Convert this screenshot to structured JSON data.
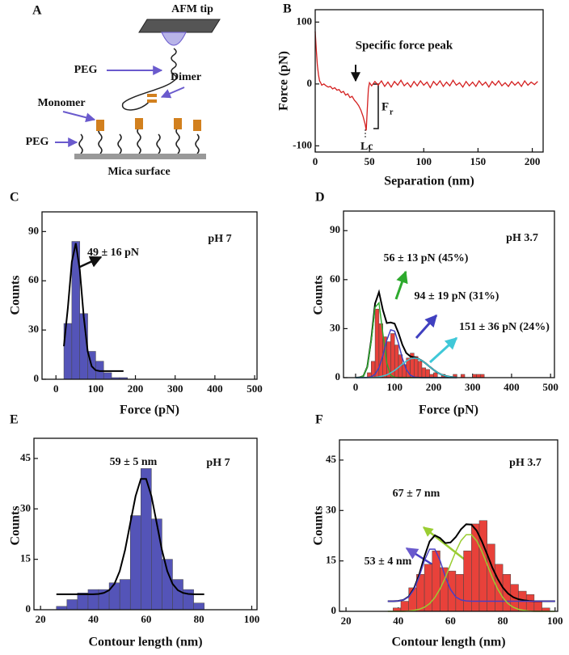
{
  "diagram": {
    "label": "A",
    "tip": "AFM tip",
    "peg_top": "PEG",
    "dimer": "Dimer",
    "monomer": "Monomer",
    "peg_bottom": "PEG",
    "surface": "Mica surface"
  },
  "chart_data": [
    {
      "type": "line",
      "label": "B",
      "xlabel": "Separation (nm)",
      "ylabel": "Force (pN)",
      "color": "#d42020",
      "x": [
        0,
        1,
        2,
        3,
        4,
        5,
        6,
        8,
        10,
        12,
        14,
        16,
        18,
        20,
        22,
        24,
        26,
        28,
        30,
        32,
        34,
        36,
        38,
        40,
        42,
        44,
        46,
        47,
        48,
        49,
        50,
        52,
        55,
        58,
        61,
        64,
        67,
        70,
        73,
        76,
        79,
        82,
        85,
        88,
        91,
        94,
        97,
        100,
        103,
        106,
        109,
        112,
        115,
        118,
        121,
        124,
        127,
        130,
        133,
        136,
        139,
        142,
        145,
        148,
        151,
        154,
        157,
        160,
        163,
        166,
        169,
        172,
        175,
        178,
        181,
        184,
        187,
        190,
        193,
        196,
        199,
        202,
        205
      ],
      "values": [
        85,
        55,
        30,
        15,
        5,
        2,
        -2,
        0,
        -3,
        -5,
        -4,
        -8,
        -6,
        -10,
        -9,
        -14,
        -12,
        -18,
        -16,
        -22,
        -20,
        -26,
        -30,
        -35,
        -42,
        -52,
        -65,
        -75,
        -40,
        -8,
        2,
        -3,
        4,
        -2,
        5,
        -4,
        3,
        -5,
        4,
        -2,
        6,
        -3,
        2,
        -5,
        4,
        -3,
        5,
        -2,
        3,
        -6,
        4,
        -2,
        5,
        -4,
        3,
        -3,
        6,
        -2,
        2,
        -5,
        4,
        -3,
        3,
        -4,
        5,
        -2,
        3,
        -5,
        4,
        -2,
        5,
        -3,
        2,
        -4,
        4,
        -2,
        3,
        -4,
        5,
        -2,
        3,
        -1,
        4
      ],
      "xlim": [
        0,
        210
      ],
      "xticks": [
        0,
        50,
        100,
        150,
        200
      ],
      "ylim": [
        -110,
        120
      ],
      "yticks": [
        -100,
        0,
        100
      ],
      "annotations": [
        "Specific force peak",
        "Lc",
        "F",
        "r"
      ]
    },
    {
      "type": "histogram",
      "label": "C",
      "xlabel": "Force (pN)",
      "ylabel": "Counts",
      "color": "#5454b8",
      "bins": [
        20,
        40,
        60,
        80,
        100,
        120,
        140,
        160,
        180
      ],
      "values": [
        34,
        84,
        40,
        17,
        11,
        4,
        1,
        1
      ],
      "fit_x": [
        20,
        30,
        40,
        50,
        60,
        70,
        80,
        90,
        100,
        110,
        120,
        130,
        140,
        150,
        160,
        170
      ],
      "fits": [
        {
          "color": "#000000",
          "values": [
            20.1,
            43.5,
            71.6,
            82.9,
            66.6,
            38,
            16.9,
            7.9,
            5.5,
            5,
            5,
            5,
            5,
            5,
            5,
            5
          ]
        }
      ],
      "xlim": [
        -35,
        506
      ],
      "xticks": [
        0,
        100,
        200,
        300,
        400,
        500
      ],
      "ylim": [
        0,
        102
      ],
      "yticks": [
        0,
        30,
        60,
        90
      ],
      "annotations": [
        "49 ± 16 pN",
        "pH 7"
      ]
    },
    {
      "type": "histogram",
      "label": "D",
      "xlabel": "Force (pN)",
      "ylabel": "Counts",
      "color": "#e8413a",
      "bins": [
        30,
        40,
        50,
        60,
        70,
        80,
        90,
        100,
        110,
        120,
        130,
        140,
        150,
        160,
        170,
        180,
        190,
        200,
        210,
        220,
        230,
        240,
        250,
        260,
        270,
        280,
        290,
        300,
        310,
        320,
        330,
        340
      ],
      "values": [
        3,
        10,
        42,
        33,
        25,
        22,
        27,
        20,
        14,
        8,
        12,
        15,
        13,
        10,
        6,
        5,
        2,
        3,
        0,
        2,
        0,
        0,
        2,
        0,
        2,
        0,
        0,
        2,
        2,
        2,
        0
      ],
      "fit_x": [
        0,
        10,
        20,
        30,
        40,
        50,
        60,
        70,
        80,
        90,
        100,
        110,
        120,
        130,
        140,
        150,
        160,
        170,
        180,
        190,
        200,
        210,
        220,
        230,
        240,
        250,
        260
      ],
      "fits": [
        {
          "color": "#000000",
          "values": [
            0,
            0.1,
            1.0,
            6.6,
            23.1,
            45.4,
            52.4,
            41.4,
            33.4,
            33.8,
            33.1,
            27.3,
            20.1,
            15.1,
            13.1,
            12.4,
            11.7,
            10.4,
            8.7,
            6.7,
            4.8,
            3.1,
            1.9,
            1.1,
            0.6,
            0.3,
            0.1
          ]
        },
        {
          "color": "#2eaa2e",
          "values": [
            0,
            0.1,
            1.0,
            6.5,
            22.5,
            43.1,
            45.8,
            26.9,
            8.8,
            1.6,
            0.2,
            0,
            0,
            0,
            0,
            0,
            0,
            0,
            0,
            0,
            0,
            0,
            0,
            0,
            0,
            0,
            0
          ]
        },
        {
          "color": "#4040c0",
          "values": [
            0,
            0,
            0,
            0.1,
            0.5,
            2.1,
            6.1,
            13.5,
            22.9,
            29.3,
            28.5,
            21.0,
            11.8,
            5.0,
            1.6,
            0.4,
            0.1,
            0,
            0,
            0,
            0,
            0,
            0,
            0,
            0,
            0,
            0
          ]
        },
        {
          "color": "#40c8d8",
          "values": [
            0,
            0,
            0,
            0,
            0.1,
            0.2,
            0.5,
            1.0,
            1.7,
            2.9,
            4.4,
            6.3,
            8.3,
            10.1,
            11.5,
            12.0,
            11.6,
            10.4,
            8.7,
            6.7,
            4.8,
            3.1,
            1.9,
            1.1,
            0.6,
            0.3,
            0.1
          ]
        }
      ],
      "xlim": [
        -31,
        510
      ],
      "xticks": [
        0,
        100,
        200,
        300,
        400,
        500
      ],
      "ylim": [
        0,
        102
      ],
      "yticks": [
        0,
        30,
        60,
        90
      ],
      "annotations": [
        "pH 3.7",
        "56 ± 13 pN (45%)",
        "94 ± 19 pN (31%)",
        "151 ± 36 pN (24%)"
      ]
    },
    {
      "type": "histogram",
      "label": "E",
      "xlabel": "Contour length (nm)",
      "ylabel": "Counts",
      "color": "#5454b8",
      "bins": [
        26,
        30,
        34,
        38,
        42,
        46,
        50,
        54,
        58,
        62,
        66,
        70,
        74,
        78,
        82
      ],
      "values": [
        1,
        3,
        5,
        6,
        6,
        8,
        9,
        28,
        42,
        27,
        15,
        9,
        6,
        2
      ],
      "fit_x": [
        26,
        28,
        30,
        32,
        34,
        36,
        38,
        40,
        42,
        44,
        46,
        48,
        50,
        52,
        54,
        56,
        58,
        60,
        62,
        64,
        66,
        68,
        70,
        72,
        74,
        76,
        78,
        80,
        82
      ],
      "fits": [
        {
          "color": "#000000",
          "values": [
            4.6,
            4.6,
            4.6,
            4.6,
            4.6,
            4.6,
            4.6,
            4.6,
            4.7,
            5.0,
            5.8,
            7.7,
            11.5,
            17.7,
            25.8,
            33.8,
            38.9,
            38.9,
            33.8,
            25.8,
            17.7,
            11.5,
            7.7,
            5.8,
            5.0,
            4.7,
            4.6,
            4.6,
            4.6
          ]
        }
      ],
      "xlim": [
        17.5,
        102
      ],
      "xticks": [
        20,
        40,
        60,
        80,
        100
      ],
      "ylim": [
        0,
        51
      ],
      "yticks": [
        0,
        15,
        30,
        45
      ],
      "annotations": [
        "59 ± 5 nm",
        "pH 7"
      ]
    },
    {
      "type": "histogram",
      "label": "F",
      "xlabel": "Contour length (nm)",
      "ylabel": "Counts",
      "color": "#e8413a",
      "bins": [
        38,
        41,
        44,
        47,
        50,
        53,
        56,
        59,
        62,
        65,
        68,
        71,
        74,
        77,
        80,
        83,
        86,
        89,
        92,
        95,
        98
      ],
      "values": [
        1,
        3,
        7,
        11,
        14,
        18,
        13,
        12,
        11,
        18,
        26,
        27,
        20,
        14,
        11,
        8,
        6,
        5,
        3,
        1
      ],
      "fit_x": [
        36,
        38,
        40,
        42,
        44,
        46,
        48,
        50,
        52,
        54,
        56,
        58,
        60,
        62,
        64,
        66,
        68,
        70,
        72,
        74,
        76,
        78,
        80,
        82,
        84,
        86,
        88,
        90,
        92,
        94,
        96,
        98,
        100
      ],
      "fits": [
        {
          "color": "#000000",
          "values": [
            3,
            3,
            3.1,
            3.4,
            4.4,
            6.8,
            10.9,
            16.3,
            20.8,
            22.6,
            21.8,
            20.3,
            20.5,
            22.1,
            24.4,
            25.9,
            25.8,
            24.0,
            20.8,
            17.0,
            13.0,
            9.7,
            7.1,
            5.3,
            4.2,
            3.6,
            3.3,
            3.1,
            3,
            3,
            3,
            3,
            3
          ]
        },
        {
          "color": "#4a3fc4",
          "values": [
            3,
            3,
            3.1,
            3.4,
            4.3,
            6.5,
            10.3,
            15.1,
            18.5,
            18.5,
            15.1,
            10.3,
            6.5,
            4.3,
            3.4,
            3.1,
            3,
            3,
            3,
            3,
            3,
            3,
            3,
            3,
            3,
            3,
            3,
            3,
            3,
            3,
            3,
            3,
            3
          ]
        },
        {
          "color": "#9acd32",
          "values": [
            0,
            0,
            0,
            0,
            0.1,
            0.3,
            0.6,
            1.2,
            2.3,
            4.1,
            6.7,
            10.0,
            14.0,
            17.8,
            21.0,
            22.8,
            22.8,
            21.0,
            17.8,
            14.0,
            10.0,
            6.7,
            4.1,
            2.3,
            1.2,
            0.6,
            0.3,
            0.1,
            0,
            0,
            0,
            0,
            0
          ]
        }
      ],
      "xlim": [
        17.5,
        101
      ],
      "xticks": [
        20,
        40,
        60,
        80,
        100
      ],
      "ylim": [
        0,
        51
      ],
      "yticks": [
        0,
        15,
        30,
        45
      ],
      "annotations": [
        "pH 3.7",
        "67 ± 7 nm",
        "53 ± 4 nm"
      ]
    }
  ]
}
